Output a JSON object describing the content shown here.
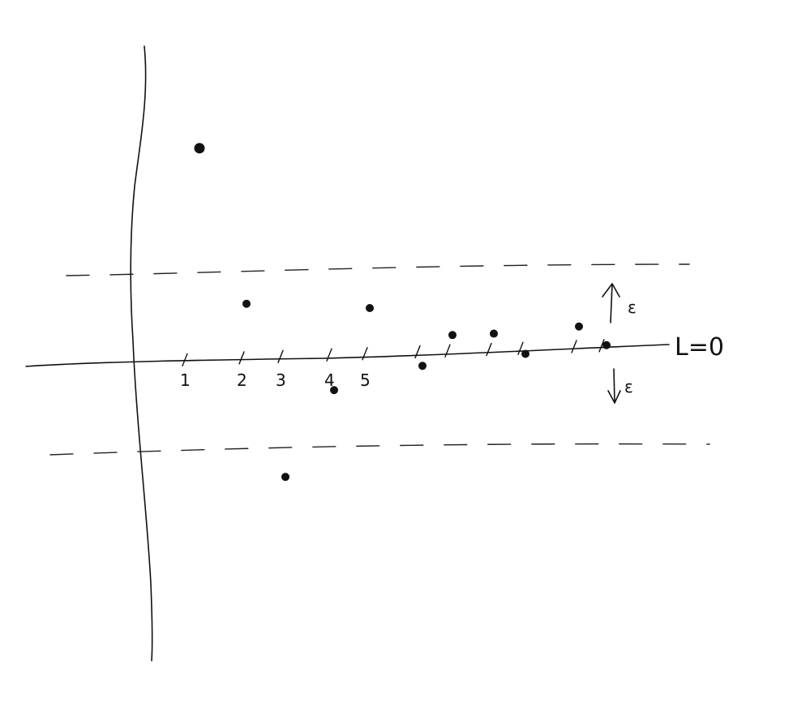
{
  "chart_data": {
    "type": "scatter",
    "title": "",
    "xlabel": "",
    "ylabel": "",
    "x_tick_labels": [
      "1",
      "2",
      "3",
      "4",
      "5"
    ],
    "baseline_label": "L=0",
    "band_labels": {
      "upper": "ε",
      "lower": "ε"
    },
    "band_halfwidth": 1,
    "grid": false,
    "series": [
      {
        "points": [
          {
            "x": 1,
            "y": 2.5
          },
          {
            "x": 2,
            "y": 0.65
          },
          {
            "x": 3,
            "y": -1.4
          },
          {
            "x": 4,
            "y": -0.4
          },
          {
            "x": 5,
            "y": 0.55
          },
          {
            "x": 6,
            "y": -0.15
          },
          {
            "x": 7,
            "y": 0.2
          },
          {
            "x": 8,
            "y": 0.2
          },
          {
            "x": 9,
            "y": -0.05
          },
          {
            "x": 10,
            "y": 0.25
          },
          {
            "x": 11,
            "y": 0.02
          }
        ]
      }
    ]
  }
}
